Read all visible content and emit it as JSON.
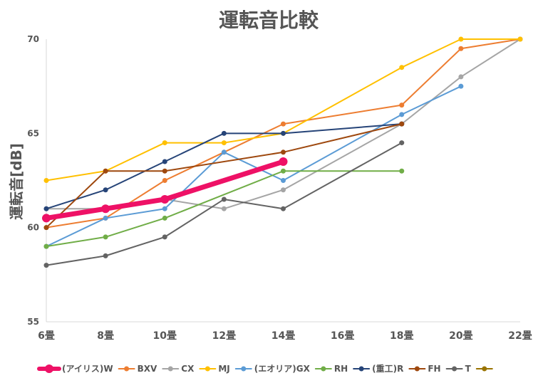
{
  "chart_data": {
    "type": "line",
    "title": "運転音比較",
    "xlabel": "",
    "ylabel": "運転音[dB]",
    "categories": [
      "6畳",
      "8畳",
      "10畳",
      "12畳",
      "14畳",
      "16畳",
      "18畳",
      "20畳",
      "22畳"
    ],
    "ylim": [
      55,
      70
    ],
    "yticks": [
      55,
      60,
      65,
      70
    ],
    "grid": false,
    "legend": "bottom",
    "series": [
      {
        "name": "(アイリス)W",
        "color": "#EE1166",
        "width": 7,
        "values": [
          60.5,
          61,
          61.5,
          null,
          63.5,
          null,
          null,
          null,
          null
        ]
      },
      {
        "name": "BXV",
        "color": "#ED7D31",
        "width": 2,
        "values": [
          60,
          60.5,
          62.5,
          64,
          65.5,
          null,
          66.5,
          69.5,
          70
        ]
      },
      {
        "name": "CX",
        "color": "#A5A5A5",
        "width": 2,
        "values": [
          61,
          61,
          61.5,
          61,
          62,
          null,
          65.5,
          68,
          70
        ]
      },
      {
        "name": "MJ",
        "color": "#FFC000",
        "width": 2,
        "values": [
          62.5,
          63,
          64.5,
          64.5,
          65,
          null,
          68.5,
          70,
          70
        ]
      },
      {
        "name": "(エオリア)GX",
        "color": "#5B9BD5",
        "width": 2,
        "values": [
          59,
          60.5,
          61,
          64,
          62.5,
          null,
          66,
          67.5,
          null
        ]
      },
      {
        "name": "RH",
        "color": "#70AD47",
        "width": 2,
        "values": [
          59,
          59.5,
          60.5,
          null,
          63,
          null,
          63,
          null,
          null
        ]
      },
      {
        "name": "(重工)R",
        "color": "#264478",
        "width": 2,
        "values": [
          61,
          62,
          63.5,
          65,
          65,
          null,
          65.5,
          null,
          null
        ]
      },
      {
        "name": "FH",
        "color": "#9E480E",
        "width": 2,
        "values": [
          60,
          63,
          63,
          null,
          64,
          null,
          65.5,
          null,
          null
        ]
      },
      {
        "name": "T",
        "color": "#636363",
        "width": 2,
        "values": [
          58,
          58.5,
          59.5,
          61.5,
          61,
          null,
          64.5,
          null,
          null
        ]
      },
      {
        "name": "",
        "color": "#997300",
        "width": 2,
        "values": [
          null,
          null,
          null,
          null,
          null,
          null,
          null,
          null,
          null
        ]
      }
    ]
  }
}
